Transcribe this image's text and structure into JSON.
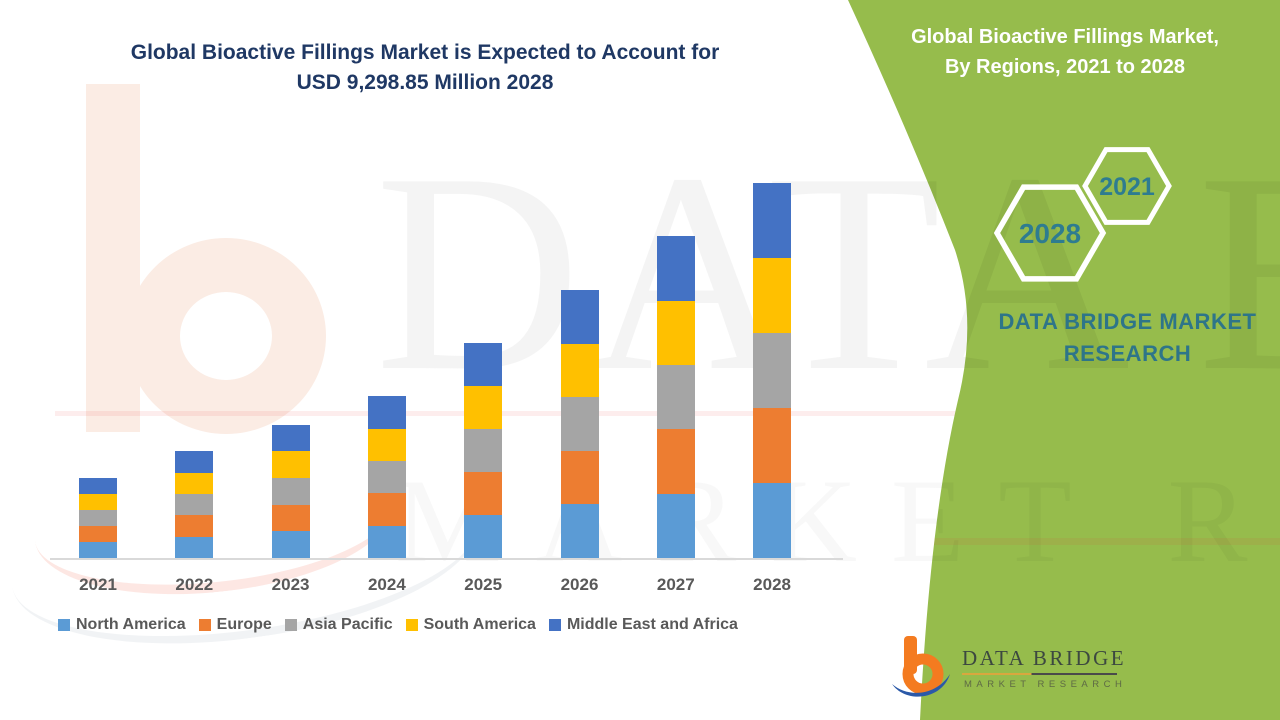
{
  "main_title": {
    "line1": "Global Bioactive Fillings Market is Expected to Account for",
    "line2": "USD 9,298.85 Million 2028"
  },
  "side_panel": {
    "title_line1": "Global Bioactive Fillings Market,",
    "title_line2": "By Regions, 2021 to 2028",
    "hexagon_back_year": "2021",
    "hexagon_front_year": "2028",
    "brand_line1": "DATA BRIDGE MARKET",
    "brand_line2": "RESEARCH",
    "panel_green": "#96bc4c",
    "brand_teal": "#2e7589",
    "hex_year_teal": "#2e7c90"
  },
  "logo": {
    "name": "DATA BRIDGE",
    "subtitle": "MARKET RESEARCH",
    "b_orange": "#f47b20",
    "swoosh_blue": "#2b59a8"
  },
  "watermarks": {
    "big_text": "DATA BRIDGE",
    "outline_text": "MARKET RESEARCH"
  },
  "chart_data": {
    "type": "bar",
    "stacked": true,
    "unit": "USD Million",
    "values_estimated": true,
    "categories": [
      "2021",
      "2022",
      "2023",
      "2024",
      "2025",
      "2026",
      "2027",
      "2028"
    ],
    "series": [
      {
        "name": "North America",
        "color": "#5b9bd5",
        "values": [
          397,
          530,
          662,
          802,
          1067,
          1330,
          1597,
          1859.77
        ]
      },
      {
        "name": "Europe",
        "color": "#ed7d31",
        "values": [
          397,
          530,
          662,
          802,
          1067,
          1330,
          1597,
          1859.77
        ]
      },
      {
        "name": "Asia Pacific",
        "color": "#a5a5a5",
        "values": [
          397,
          530,
          662,
          802,
          1067,
          1330,
          1597,
          1859.77
        ]
      },
      {
        "name": "South America",
        "color": "#ffc000",
        "values": [
          397,
          530,
          662,
          802,
          1067,
          1330,
          1597,
          1859.77
        ]
      },
      {
        "name": "Middle East and Africa",
        "color": "#4472c4",
        "values": [
          397,
          530,
          662,
          802,
          1067,
          1330,
          1597,
          1859.77
        ]
      }
    ],
    "totals": [
      1985,
      2650,
      3310,
      4010,
      5335,
      6650,
      7985,
      9298.85
    ],
    "labeled_total_2028": "USD 9,298.85 Million",
    "xlabel": "",
    "ylabel": "",
    "y_axis_visible": false,
    "gridlines": false,
    "legend_position": "bottom",
    "label_color": "#595959",
    "axis_line_color": "#d9d9d9"
  }
}
